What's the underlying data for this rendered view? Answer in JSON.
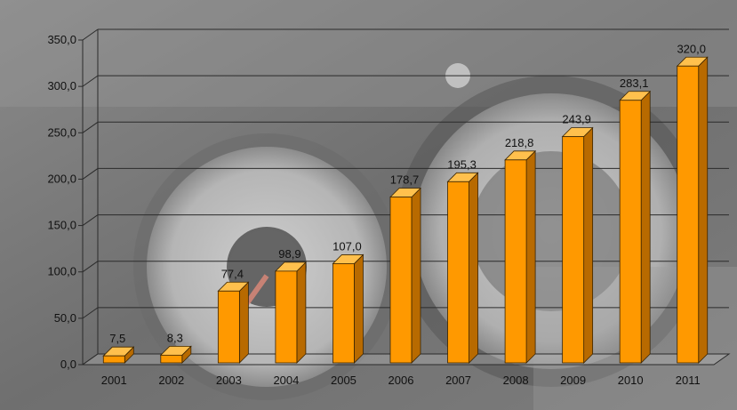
{
  "chart_data": {
    "type": "bar",
    "categories": [
      "2001",
      "2002",
      "2003",
      "2004",
      "2005",
      "2006",
      "2007",
      "2008",
      "2009",
      "2010",
      "2011"
    ],
    "values": [
      7.5,
      8.3,
      77.4,
      98.9,
      107.0,
      178.7,
      195.3,
      218.8,
      243.9,
      283.1,
      320.0
    ],
    "value_labels": [
      "7,5",
      "8,3",
      "77,4",
      "98,9",
      "107,0",
      "178,7",
      "195,3",
      "218,8",
      "243,9",
      "283,1",
      "320,0"
    ],
    "y_ticks": [
      "0,0",
      "50,0",
      "100,0",
      "150,0",
      "200,0",
      "250,0",
      "300,0",
      "350,0"
    ],
    "ylim": [
      0,
      350
    ],
    "title": "",
    "xlabel": "",
    "ylabel": "",
    "grid": true,
    "legend": "none",
    "style": "3d-column",
    "bar_color": "#FF9900",
    "bar_side_color": "#B86A00",
    "bar_top_color": "#FFC04D",
    "background_image": "car-dashboard-speedometer"
  }
}
